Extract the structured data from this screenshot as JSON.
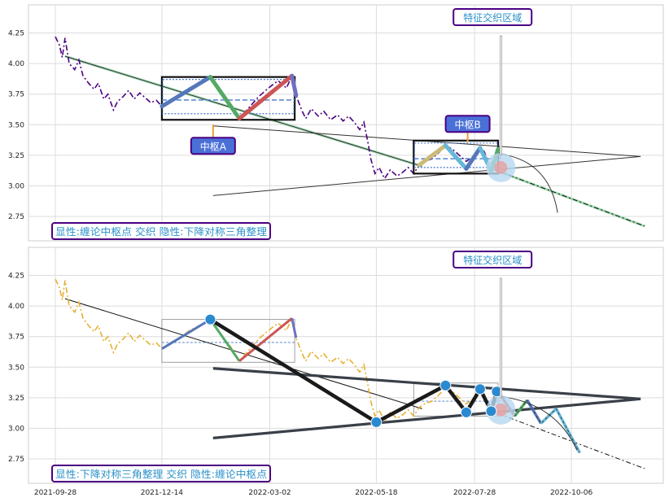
{
  "chart_data": [
    {
      "type": "line",
      "panel": "top",
      "ylim": [
        2.55,
        4.48
      ],
      "yticks": [
        "2.75",
        "3.00",
        "3.25",
        "3.50",
        "3.75",
        "4.00",
        "4.25"
      ],
      "grid": true,
      "series": [
        {
          "name": "",
          "style": "dash-dot",
          "color": "#4b0082",
          "points": [
            [
              "2021-09-28",
              4.22
            ],
            [
              "2021-10-01",
              4.15
            ],
            [
              "2021-10-03",
              4.05
            ],
            [
              "2021-10-05",
              4.21
            ],
            [
              "2021-10-08",
              4.0
            ],
            [
              "2021-10-12",
              3.95
            ],
            [
              "2021-10-15",
              4.03
            ],
            [
              "2021-10-18",
              3.9
            ],
            [
              "2021-10-22",
              3.84
            ],
            [
              "2021-10-26",
              3.79
            ],
            [
              "2021-10-29",
              3.84
            ],
            [
              "2021-11-02",
              3.71
            ],
            [
              "2021-11-05",
              3.75
            ],
            [
              "2021-11-09",
              3.62
            ],
            [
              "2021-11-12",
              3.69
            ],
            [
              "2021-11-16",
              3.73
            ],
            [
              "2021-11-20",
              3.78
            ],
            [
              "2021-11-24",
              3.71
            ],
            [
              "2021-11-28",
              3.76
            ],
            [
              "2021-12-02",
              3.72
            ],
            [
              "2021-12-06",
              3.68
            ],
            [
              "2021-12-10",
              3.7
            ],
            [
              "2021-12-14",
              3.65
            ],
            [
              "2021-12-20",
              3.7
            ],
            [
              "2021-12-27",
              3.74
            ],
            [
              "2022-01-03",
              3.8
            ],
            [
              "2022-01-10",
              3.84
            ],
            [
              "2022-01-18",
              3.89
            ],
            [
              "2022-01-25",
              3.77
            ],
            [
              "2022-02-01",
              3.68
            ],
            [
              "2022-02-08",
              3.55
            ],
            [
              "2022-02-15",
              3.64
            ],
            [
              "2022-02-22",
              3.73
            ],
            [
              "2022-03-01",
              3.8
            ],
            [
              "2022-03-08",
              3.86
            ],
            [
              "2022-03-14",
              3.8
            ],
            [
              "2022-03-18",
              3.9
            ],
            [
              "2022-03-21",
              3.74
            ],
            [
              "2022-03-25",
              3.62
            ],
            [
              "2022-03-28",
              3.55
            ],
            [
              "2022-04-01",
              3.63
            ],
            [
              "2022-04-06",
              3.57
            ],
            [
              "2022-04-10",
              3.61
            ],
            [
              "2022-04-15",
              3.54
            ],
            [
              "2022-04-20",
              3.58
            ],
            [
              "2022-04-24",
              3.53
            ],
            [
              "2022-04-28",
              3.57
            ],
            [
              "2022-05-02",
              3.52
            ],
            [
              "2022-05-06",
              3.46
            ],
            [
              "2022-05-09",
              3.52
            ],
            [
              "2022-05-12",
              3.35
            ],
            [
              "2022-05-14",
              3.22
            ],
            [
              "2022-05-17",
              3.1
            ],
            [
              "2022-05-20",
              3.15
            ],
            [
              "2022-05-24",
              3.06
            ],
            [
              "2022-05-28",
              3.13
            ],
            [
              "2022-06-02",
              3.08
            ],
            [
              "2022-06-06",
              3.11
            ],
            [
              "2022-06-10",
              3.15
            ],
            [
              "2022-06-14",
              3.1
            ],
            [
              "2022-06-18",
              3.17
            ],
            [
              "2022-06-22",
              3.2
            ],
            [
              "2022-06-27",
              3.22
            ],
            [
              "2022-07-02",
              3.27
            ],
            [
              "2022-07-07",
              3.33
            ],
            [
              "2022-07-12",
              3.3
            ],
            [
              "2022-07-17",
              3.25
            ],
            [
              "2022-07-22",
              3.2
            ],
            [
              "2022-07-27",
              3.24
            ],
            [
              "2022-08-01",
              3.31
            ],
            [
              "2022-08-04",
              3.28
            ],
            [
              "2022-08-08",
              3.16
            ],
            [
              "2022-08-11",
              3.22
            ],
            [
              "2022-08-14",
              3.3
            ],
            [
              "2022-08-16",
              3.2
            ]
          ]
        }
      ],
      "segments": [
        {
          "color": "#5577bb",
          "from": [
            "2021-12-14",
            3.65
          ],
          "to": [
            "2022-01-18",
            3.89
          ]
        },
        {
          "color": "#55aa66",
          "from": [
            "2022-01-18",
            3.89
          ],
          "to": [
            "2022-02-08",
            3.55
          ]
        },
        {
          "color": "#cc5555",
          "from": [
            "2022-02-08",
            3.55
          ],
          "to": [
            "2022-03-18",
            3.9
          ]
        },
        {
          "color": "#7070c0",
          "from": [
            "2022-03-18",
            3.9
          ],
          "to": [
            "2022-03-21",
            3.74
          ]
        },
        {
          "color": "#ccbb77",
          "from": [
            "2022-06-18",
            3.17
          ],
          "to": [
            "2022-07-07",
            3.33
          ]
        },
        {
          "color": "#66b8d8",
          "from": [
            "2022-07-07",
            3.33
          ],
          "to": [
            "2022-07-22",
            3.14
          ]
        },
        {
          "color": "#5577bb",
          "from": [
            "2022-07-22",
            3.14
          ],
          "to": [
            "2022-08-01",
            3.31
          ]
        },
        {
          "color": "#66b8d8",
          "from": [
            "2022-08-01",
            3.31
          ],
          "to": [
            "2022-08-09",
            3.12
          ]
        },
        {
          "color": "#55aa66",
          "from": [
            "2022-08-09",
            3.12
          ],
          "to": [
            "2022-08-14",
            3.3
          ]
        }
      ],
      "zones": [
        {
          "label": "中枢A",
          "x": [
            "2021-12-14",
            "2022-03-20"
          ],
          "y": [
            3.54,
            3.89
          ]
        },
        {
          "label": "中枢B",
          "x": [
            "2022-06-14",
            "2022-08-14"
          ],
          "y": [
            3.1,
            3.37
          ]
        }
      ],
      "callouts": [
        "中枢A",
        "中枢B",
        "特征交织区域"
      ],
      "footer": "显性:缠论中枢点 交织 隐性:下降对称三角整理"
    },
    {
      "type": "line",
      "panel": "bottom",
      "ylim": [
        2.55,
        4.48
      ],
      "yticks": [
        "2.75",
        "3.00",
        "3.25",
        "3.50",
        "3.75",
        "4.00",
        "4.25"
      ],
      "xticks": [
        "2021-09-28",
        "2021-12-14",
        "2022-03-02",
        "2022-05-18",
        "2022-07-28",
        "2022-10-06"
      ],
      "grid": true,
      "series": [
        {
          "name": "",
          "style": "dash-dot",
          "color": "#e8b030",
          "points": [
            [
              "2021-09-28",
              4.22
            ],
            [
              "2021-10-01",
              4.15
            ],
            [
              "2021-10-03",
              4.05
            ],
            [
              "2021-10-05",
              4.21
            ],
            [
              "2021-10-08",
              4.0
            ],
            [
              "2021-10-12",
              3.95
            ],
            [
              "2021-10-15",
              4.03
            ],
            [
              "2021-10-18",
              3.9
            ],
            [
              "2021-10-22",
              3.84
            ],
            [
              "2021-10-26",
              3.79
            ],
            [
              "2021-10-29",
              3.84
            ],
            [
              "2021-11-02",
              3.71
            ],
            [
              "2021-11-05",
              3.75
            ],
            [
              "2021-11-09",
              3.62
            ],
            [
              "2021-11-12",
              3.69
            ],
            [
              "2021-11-16",
              3.73
            ],
            [
              "2021-11-20",
              3.78
            ],
            [
              "2021-11-24",
              3.71
            ],
            [
              "2021-11-28",
              3.76
            ],
            [
              "2021-12-02",
              3.72
            ],
            [
              "2021-12-06",
              3.68
            ],
            [
              "2021-12-10",
              3.7
            ],
            [
              "2021-12-14",
              3.65
            ],
            [
              "2021-12-20",
              3.7
            ],
            [
              "2021-12-27",
              3.74
            ],
            [
              "2022-01-03",
              3.8
            ],
            [
              "2022-01-10",
              3.84
            ],
            [
              "2022-01-18",
              3.89
            ],
            [
              "2022-01-25",
              3.77
            ],
            [
              "2022-02-01",
              3.68
            ],
            [
              "2022-02-08",
              3.55
            ],
            [
              "2022-02-15",
              3.64
            ],
            [
              "2022-02-22",
              3.73
            ],
            [
              "2022-03-01",
              3.8
            ],
            [
              "2022-03-08",
              3.86
            ],
            [
              "2022-03-14",
              3.8
            ],
            [
              "2022-03-18",
              3.9
            ],
            [
              "2022-03-21",
              3.74
            ],
            [
              "2022-03-25",
              3.62
            ],
            [
              "2022-03-28",
              3.55
            ],
            [
              "2022-04-01",
              3.63
            ],
            [
              "2022-04-06",
              3.57
            ],
            [
              "2022-04-10",
              3.61
            ],
            [
              "2022-04-15",
              3.54
            ],
            [
              "2022-04-20",
              3.58
            ],
            [
              "2022-04-24",
              3.53
            ],
            [
              "2022-04-28",
              3.57
            ],
            [
              "2022-05-02",
              3.52
            ],
            [
              "2022-05-06",
              3.46
            ],
            [
              "2022-05-09",
              3.52
            ],
            [
              "2022-05-12",
              3.35
            ],
            [
              "2022-05-14",
              3.22
            ],
            [
              "2022-05-17",
              3.1
            ],
            [
              "2022-05-20",
              3.15
            ],
            [
              "2022-05-24",
              3.06
            ],
            [
              "2022-05-28",
              3.13
            ],
            [
              "2022-06-02",
              3.08
            ],
            [
              "2022-06-06",
              3.11
            ],
            [
              "2022-06-10",
              3.15
            ],
            [
              "2022-06-14",
              3.1
            ],
            [
              "2022-06-18",
              3.17
            ],
            [
              "2022-06-22",
              3.2
            ],
            [
              "2022-06-27",
              3.22
            ],
            [
              "2022-07-02",
              3.27
            ],
            [
              "2022-07-07",
              3.33
            ],
            [
              "2022-07-12",
              3.3
            ],
            [
              "2022-07-17",
              3.25
            ],
            [
              "2022-07-22",
              3.2
            ],
            [
              "2022-07-27",
              3.24
            ],
            [
              "2022-08-01",
              3.31
            ],
            [
              "2022-08-04",
              3.28
            ],
            [
              "2022-08-08",
              3.16
            ],
            [
              "2022-08-11",
              3.22
            ],
            [
              "2022-08-14",
              3.3
            ],
            [
              "2022-08-16",
              3.2
            ]
          ]
        }
      ],
      "pivots": [
        [
          "2022-01-18",
          3.89
        ],
        [
          "2022-05-18",
          3.05
        ],
        [
          "2022-07-07",
          3.35
        ],
        [
          "2022-07-22",
          3.13
        ],
        [
          "2022-08-01",
          3.32
        ],
        [
          "2022-08-09",
          3.14
        ],
        [
          "2022-08-13",
          3.3
        ]
      ],
      "projection": [
        [
          "2022-08-14",
          3.3
        ],
        [
          "2022-08-26",
          3.1
        ],
        [
          "2022-09-04",
          3.23
        ],
        [
          "2022-09-14",
          3.04
        ],
        [
          "2022-09-25",
          3.16
        ],
        [
          "2022-10-12",
          2.8
        ]
      ],
      "callouts": [
        "特征交织区域"
      ],
      "footer": "显性:下降对称三角整理 交织 隐性:缠论中枢点"
    }
  ]
}
